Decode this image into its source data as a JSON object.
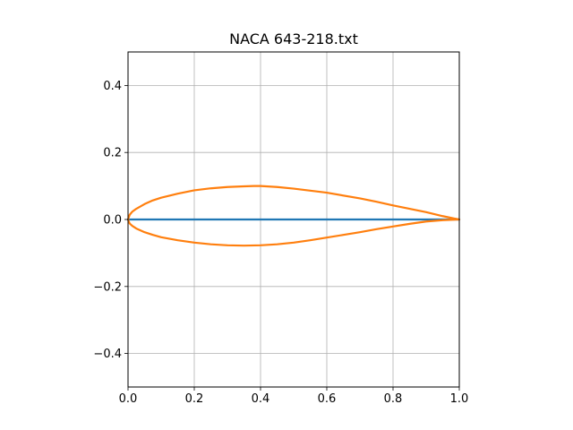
{
  "chart_data": {
    "type": "line",
    "title": "NACA 643-218.txt",
    "xlabel": "",
    "ylabel": "",
    "xlim": [
      0.0,
      1.0
    ],
    "ylim": [
      -0.5,
      0.5
    ],
    "grid": true,
    "legend": "none",
    "x_ticks": [
      0.0,
      0.2,
      0.4,
      0.6,
      0.8,
      1.0
    ],
    "x_tick_labels": [
      "0.0",
      "0.2",
      "0.4",
      "0.6",
      "0.8",
      "1.0"
    ],
    "y_ticks": [
      -0.4,
      -0.2,
      0.0,
      0.2,
      0.4
    ],
    "y_tick_labels": [
      "−0.4",
      "−0.2",
      "0.0",
      "0.2",
      "0.4"
    ],
    "colors": {
      "camber": "#1f77b4",
      "profile": "#ff7f0e",
      "grid": "#b0b0b0",
      "axes": "#000000"
    },
    "series": [
      {
        "x": [
          0.0,
          1.0
        ],
        "y": [
          0.0,
          0.0
        ]
      },
      {
        "x": [
          1.0,
          0.95,
          0.9,
          0.85,
          0.8,
          0.75,
          0.7,
          0.6,
          0.5,
          0.45,
          0.4,
          0.38,
          0.35,
          0.3,
          0.25,
          0.2,
          0.15,
          0.1,
          0.075,
          0.05,
          0.025,
          0.0125,
          0.005,
          0.0,
          0.005,
          0.0125,
          0.025,
          0.05,
          0.075,
          0.1,
          0.15,
          0.2,
          0.25,
          0.3,
          0.35,
          0.4,
          0.45,
          0.5,
          0.55,
          0.6,
          0.65,
          0.7,
          0.75,
          0.8,
          0.85,
          0.9,
          0.95,
          1.0
        ],
        "y": [
          0.0,
          0.01,
          0.022,
          0.032,
          0.042,
          0.053,
          0.063,
          0.08,
          0.092,
          0.097,
          0.1,
          0.1,
          0.099,
          0.097,
          0.093,
          0.087,
          0.077,
          0.065,
          0.057,
          0.046,
          0.032,
          0.023,
          0.014,
          0.0,
          -0.012,
          -0.019,
          -0.027,
          -0.038,
          -0.046,
          -0.053,
          -0.062,
          -0.069,
          -0.074,
          -0.077,
          -0.078,
          -0.077,
          -0.074,
          -0.069,
          -0.062,
          -0.054,
          -0.046,
          -0.038,
          -0.029,
          -0.021,
          -0.013,
          -0.006,
          -0.002,
          0.0
        ]
      }
    ]
  }
}
